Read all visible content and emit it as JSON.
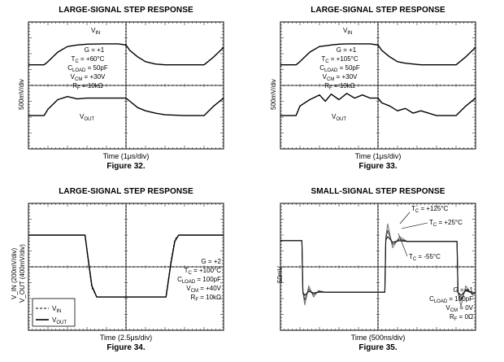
{
  "chart_data": [
    {
      "type": "line",
      "figure": "Figure 32.",
      "title": "LARGE-SIGNAL STEP RESPONSE",
      "xlabel": "Time (1μs/div)",
      "ylabel": "500mV/div",
      "trace_labels": [
        "V_IN",
        "V_OUT"
      ],
      "conditions": [
        "G = +1",
        "T_C = +60°C",
        "C_LOAD = 50pF",
        "V_CM = +30V",
        "R_F = 10kΩ"
      ],
      "x": [
        0,
        0.8,
        1,
        1.5,
        2,
        2.5,
        3,
        4,
        4.6,
        5,
        5.2,
        5.6,
        6,
        6.5,
        7,
        8,
        9,
        9.5,
        10
      ],
      "series": [
        {
          "name": "V_IN",
          "values": [
            1.3,
            1.3,
            1.5,
            2.1,
            2.45,
            2.55,
            2.6,
            2.62,
            2.62,
            2.55,
            2.2,
            1.8,
            1.5,
            1.35,
            1.3,
            1.3,
            1.3,
            1.8,
            2.4
          ]
        },
        {
          "name": "V_OUT",
          "values": [
            -1.9,
            -1.9,
            -1.5,
            -0.9,
            -0.7,
            -0.85,
            -0.8,
            -0.8,
            -0.8,
            -0.8,
            -1.0,
            -1.4,
            -1.6,
            -1.75,
            -1.85,
            -1.9,
            -1.9,
            -1.3,
            -0.8
          ]
        }
      ],
      "xlim": [
        0,
        10
      ],
      "ylim": [
        -4,
        4
      ],
      "grid": "center axes"
    },
    {
      "type": "line",
      "figure": "Figure 33.",
      "title": "LARGE-SIGNAL STEP RESPONSE",
      "xlabel": "Time (1μs/div)",
      "ylabel": "500mV/div",
      "trace_labels": [
        "V_IN",
        "V_OUT"
      ],
      "conditions": [
        "G = +1",
        "T_C = +105°C",
        "C_LOAD = 50pF",
        "V_CM = +30V",
        "R_F = 10kΩ"
      ],
      "x": [
        0,
        0.8,
        1,
        1.5,
        2,
        2.3,
        2.6,
        3,
        3.4,
        3.8,
        4.2,
        4.6,
        5,
        5.2,
        5.6,
        6,
        6.4,
        6.8,
        7.2,
        8,
        9,
        9.5,
        10
      ],
      "series": [
        {
          "name": "V_IN",
          "values": [
            1.3,
            1.3,
            1.5,
            2.1,
            2.45,
            2.5,
            2.55,
            2.6,
            2.62,
            2.62,
            2.62,
            2.62,
            2.55,
            2.2,
            1.8,
            1.5,
            1.4,
            1.35,
            1.3,
            1.3,
            1.3,
            1.8,
            2.4
          ]
        },
        {
          "name": "V_OUT",
          "values": [
            -1.9,
            -1.9,
            -1.3,
            -0.9,
            -0.6,
            -1.0,
            -0.55,
            -0.9,
            -0.5,
            -0.8,
            -0.6,
            -0.8,
            -0.8,
            -1.1,
            -1.3,
            -1.6,
            -1.45,
            -1.75,
            -1.6,
            -1.9,
            -1.9,
            -1.3,
            -0.8
          ]
        }
      ],
      "xlim": [
        0,
        10
      ],
      "ylim": [
        -4,
        4
      ],
      "grid": "center axes"
    },
    {
      "type": "line",
      "figure": "Figure 34.",
      "title": "LARGE-SIGNAL STEP RESPONSE",
      "xlabel": "Time (2.5μs/div)",
      "ylabel_lines": [
        "V_IN (200mV/div)",
        "V_OUT (400mV/div)"
      ],
      "legend": [
        "V_IN",
        "V_OUT"
      ],
      "legend_position": "bottom-left",
      "conditions": [
        "G = +2",
        "T_C = +100°C",
        "C_LOAD = 100pF",
        "V_CM = +40V",
        "R_F = 10kΩ"
      ],
      "x": [
        0,
        2.9,
        3.05,
        3.25,
        3.5,
        7.05,
        7.3,
        7.5,
        7.7,
        10
      ],
      "series": [
        {
          "name": "V_IN",
          "values": [
            2.0,
            2.0,
            0.5,
            -1.3,
            -1.9,
            -1.9,
            0.3,
            1.7,
            2.0,
            2.0
          ]
        },
        {
          "name": "V_OUT",
          "values": [
            2.0,
            2.0,
            0.6,
            -1.2,
            -1.9,
            -1.9,
            0.2,
            1.6,
            2.0,
            2.0
          ]
        }
      ],
      "xlim": [
        0,
        10
      ],
      "ylim": [
        -4,
        4
      ],
      "grid": "center axes"
    },
    {
      "type": "line",
      "figure": "Figure 35.",
      "title": "SMALL-SIGNAL STEP RESPONSE",
      "xlabel": "Time (500ns/div)",
      "ylabel": "50mV",
      "annotations": [
        "T_C = +125°C",
        "T_C = +25°C",
        "T_C = -55°C"
      ],
      "conditions": [
        "G = +1",
        "C_LOAD = 100pF",
        "V_CM = 0V",
        "R_F = 0Ω"
      ],
      "x": [
        0,
        1.1,
        1.15,
        1.25,
        1.45,
        1.7,
        1.95,
        2.3,
        5.35,
        5.4,
        5.5,
        5.75,
        6.1,
        6.5,
        9.05,
        9.1,
        9.25,
        9.5,
        9.85,
        10
      ],
      "series": [
        {
          "name": "T_C = +125°C",
          "values": [
            1.65,
            1.65,
            -1.6,
            -2.4,
            -1.2,
            -1.9,
            -1.5,
            -1.6,
            -1.6,
            1.9,
            2.7,
            1.2,
            1.9,
            1.6,
            1.6,
            -1.6,
            -2.5,
            -1.2,
            -1.8,
            -1.6
          ]
        },
        {
          "name": "T_C = +25°C",
          "values": [
            1.65,
            1.65,
            -1.6,
            -2.1,
            -1.4,
            -1.75,
            -1.55,
            -1.6,
            -1.6,
            1.8,
            2.3,
            1.4,
            1.75,
            1.6,
            1.6,
            -1.6,
            -2.1,
            -1.4,
            -1.7,
            -1.6
          ]
        },
        {
          "name": "T_C = -55°C",
          "values": [
            1.65,
            1.65,
            -1.6,
            -1.8,
            -1.55,
            -1.65,
            -1.6,
            -1.6,
            -1.6,
            1.7,
            1.9,
            1.55,
            1.65,
            1.6,
            1.6,
            -1.6,
            -1.8,
            -1.5,
            -1.65,
            -1.6
          ]
        }
      ],
      "xlim": [
        0,
        10
      ],
      "ylim": [
        -4,
        4
      ],
      "grid": "center axes"
    }
  ]
}
